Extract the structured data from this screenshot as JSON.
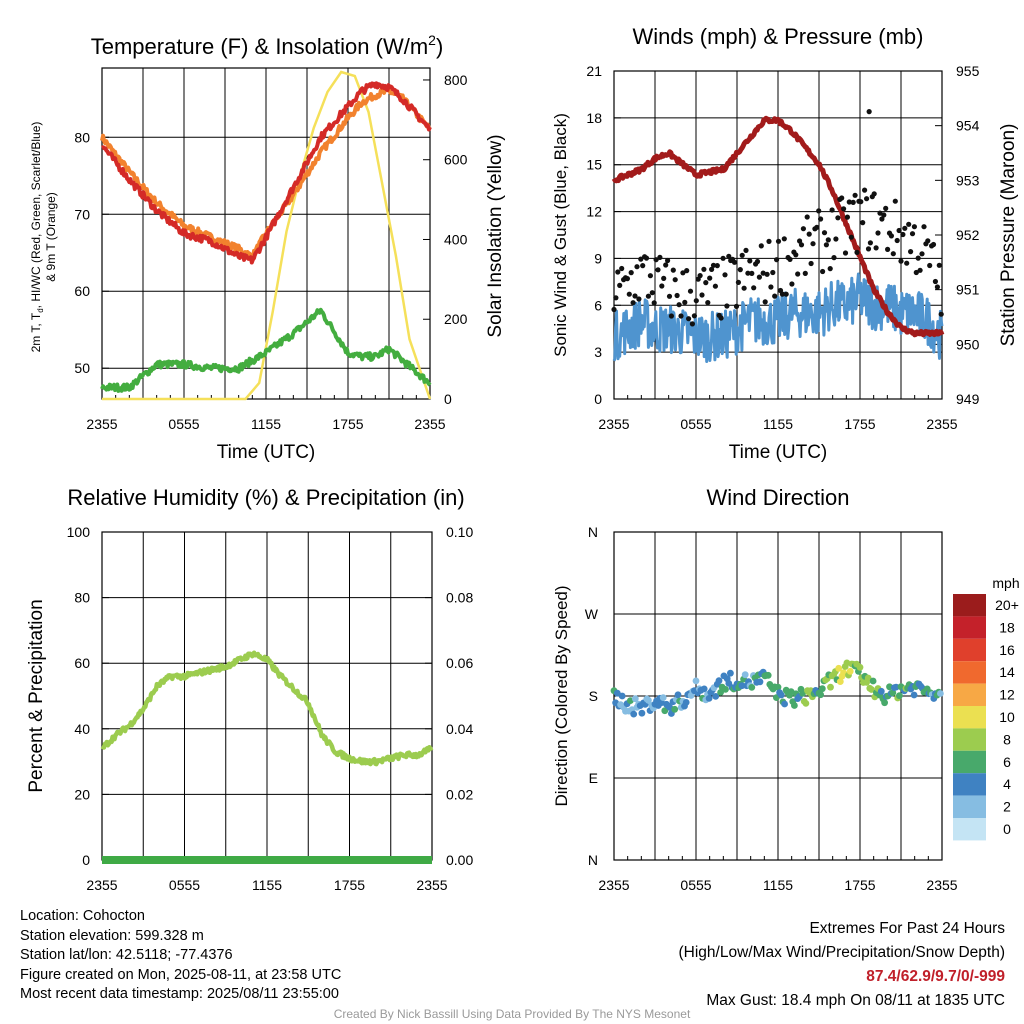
{
  "colors": {
    "temp": "#d42a27",
    "dewpoint": "#43ad3f",
    "temp9m": "#f2822e",
    "solar": "#f5e05a",
    "wind": "#4f94cf",
    "gust": "#111111",
    "pressure": "#a21b1b",
    "rh": "#9ccc4f",
    "precip": "#3faa45"
  },
  "panels": {
    "temp": {
      "title": "Temperature (F) & Insolation (W/m",
      "title_sup": "2",
      "title_end": ")",
      "ylabel_line1": "2m T, T",
      "ylabel_sub": "d",
      "ylabel_line1_end": ", HI/WC (Red, Green, Scarlet/Blue)",
      "ylabel_line2": "& 9m T (Orange)",
      "y2label": "Solar Insolation (Yellow)",
      "xlabel": "Time (UTC)"
    },
    "winds": {
      "title": "Winds (mph) & Pressure (mb)",
      "ylabel": "Sonic Wind & Gust (Blue, Black)",
      "y2label": "Station Pressure (Maroon)",
      "xlabel": "Time (UTC)"
    },
    "rh": {
      "title": "Relative Humidity (%) & Precipitation (in)",
      "ylabel": "Percent & Precipitation"
    },
    "dir": {
      "title": "Wind Direction",
      "ylabel": "Direction (Colored By Speed)"
    }
  },
  "chart_data": [
    {
      "type": "line",
      "title": "Temperature (F) & Insolation (W/m2)",
      "xlabel": "Time (UTC)",
      "ylabel": "2m T, Td, HI/WC (Red, Green, Scarlet/Blue) & 9m T (Orange)",
      "y2label": "Solar Insolation (Yellow)",
      "x_ticks": [
        "2355",
        "0555",
        "1155",
        "1755",
        "2355"
      ],
      "ylim": [
        46,
        89
      ],
      "y_ticks": [
        50,
        60,
        70,
        80
      ],
      "y2lim": [
        0,
        830
      ],
      "y2_ticks": [
        0,
        200,
        400,
        600,
        800
      ],
      "x_hours": [
        0,
        2,
        4,
        6,
        8,
        10,
        11,
        12,
        14,
        16,
        18,
        19,
        20,
        21,
        22,
        24
      ],
      "series": [
        {
          "name": "2m T",
          "values": [
            79,
            74.5,
            70.5,
            67.5,
            66.5,
            64.5,
            64,
            67,
            73.5,
            80,
            84,
            86,
            87,
            86.5,
            85,
            81
          ]
        },
        {
          "name": "Td",
          "values": [
            47.5,
            47.5,
            50.5,
            50.5,
            50,
            50,
            51,
            52,
            54.5,
            57.5,
            52,
            51.5,
            51.5,
            52.5,
            51,
            48
          ]
        },
        {
          "name": "9m T",
          "values": [
            80,
            75.5,
            71.5,
            68.5,
            67,
            65.5,
            64.5,
            67.5,
            72.5,
            78,
            82.5,
            84.5,
            85.5,
            86,
            85,
            81
          ]
        }
      ],
      "solar": {
        "name": "Solar Insolation",
        "x_hours": [
          0,
          10.5,
          11.5,
          12.5,
          13.5,
          14.5,
          15.5,
          16.5,
          17.5,
          18.5,
          19.5,
          20.5,
          21.5,
          22.5,
          24
        ],
        "values": [
          0,
          0,
          40,
          220,
          420,
          560,
          680,
          770,
          820,
          810,
          720,
          540,
          360,
          150,
          0
        ]
      }
    },
    {
      "type": "line",
      "title": "Winds (mph) & Pressure (mb)",
      "xlabel": "Time (UTC)",
      "ylabel": "Sonic Wind & Gust (Blue, Black)",
      "y2label": "Station Pressure (Maroon)",
      "x_ticks": [
        "2355",
        "0555",
        "1155",
        "1755",
        "2355"
      ],
      "ylim": [
        0,
        21
      ],
      "y_ticks": [
        0,
        3,
        6,
        9,
        12,
        15,
        18,
        21
      ],
      "y2lim": [
        949,
        955
      ],
      "y2_ticks": [
        949,
        950,
        951,
        952,
        953,
        954,
        955
      ],
      "x_hours": [
        0,
        2,
        3,
        4,
        6,
        8,
        10,
        11,
        12,
        13,
        14,
        15,
        16,
        17,
        18,
        19,
        20,
        21,
        22,
        23,
        24
      ],
      "series": [
        {
          "name": "Wind",
          "values": [
            4,
            5,
            4.5,
            4.5,
            4,
            4,
            5,
            5,
            5,
            5.5,
            5.5,
            5.5,
            6,
            6,
            6.5,
            6,
            6,
            5.5,
            5.5,
            5,
            4
          ]
        },
        {
          "name": "Gust",
          "values": [
            6.5,
            8,
            7.5,
            7,
            6.5,
            7,
            8,
            8,
            8.5,
            9,
            9.5,
            10,
            10.5,
            11,
            11.5,
            11.5,
            11,
            10.5,
            10,
            9,
            7
          ]
        },
        {
          "name": "Pressure",
          "values": [
            953.0,
            953.2,
            953.4,
            953.5,
            953.1,
            953.2,
            953.8,
            954.1,
            954.1,
            953.9,
            953.6,
            953.3,
            952.8,
            952.2,
            951.6,
            951.0,
            950.6,
            950.3,
            950.2,
            950.2,
            950.2
          ]
        }
      ],
      "max_gust": {
        "x_hour": 18.67,
        "value": 18.4
      }
    },
    {
      "type": "line",
      "title": "Relative Humidity (%) & Precipitation (in)",
      "ylabel": "Percent & Precipitation",
      "x_ticks": [
        "2355",
        "0555",
        "1155",
        "1755",
        "2355"
      ],
      "ylim": [
        0,
        100
      ],
      "y_ticks": [
        0,
        20,
        40,
        60,
        80,
        100
      ],
      "y2lim": [
        0,
        0.1
      ],
      "y2_ticks": [
        "0.00",
        "0.02",
        "0.04",
        "0.06",
        "0.08",
        "0.10"
      ],
      "x_hours": [
        0,
        1,
        2,
        3,
        4,
        5,
        6,
        7,
        8,
        9,
        10,
        11,
        12,
        13,
        14,
        15,
        16,
        17,
        18,
        19,
        20,
        21,
        22,
        23,
        24
      ],
      "series": [
        {
          "name": "RH",
          "values": [
            34,
            38,
            41,
            46,
            53,
            56,
            56,
            57,
            58,
            59,
            61,
            63,
            61,
            56,
            52,
            48,
            38,
            33,
            31,
            30,
            30,
            31,
            32,
            32,
            34
          ]
        },
        {
          "name": "Precipitation",
          "values": [
            0,
            0,
            0,
            0,
            0,
            0,
            0,
            0,
            0,
            0,
            0,
            0,
            0,
            0,
            0,
            0,
            0,
            0,
            0,
            0,
            0,
            0,
            0,
            0,
            0
          ]
        }
      ]
    },
    {
      "type": "scatter",
      "title": "Wind Direction",
      "ylabel": "Direction (Colored By Speed)",
      "x_ticks": [
        "2355",
        "0555",
        "1155",
        "1755",
        "2355"
      ],
      "y_ticks": [
        "N",
        "E",
        "S",
        "W",
        "N"
      ],
      "ylim_deg": [
        0,
        360
      ],
      "x_hours": [
        0,
        1,
        2,
        3,
        4,
        5,
        6,
        7,
        8,
        9,
        10,
        11,
        12,
        13,
        14,
        15,
        16,
        17,
        18,
        19,
        20,
        21,
        22,
        23,
        24
      ],
      "direction_deg": [
        180,
        170,
        167,
        175,
        168,
        175,
        188,
        182,
        195,
        197,
        195,
        200,
        182,
        177,
        180,
        185,
        198,
        210,
        205,
        188,
        180,
        188,
        190,
        185,
        185
      ],
      "speed_mph": [
        4,
        4,
        3,
        4,
        4,
        4,
        3,
        4,
        5,
        4,
        4,
        5,
        5,
        5,
        6,
        6,
        7,
        8,
        7,
        7,
        6,
        6,
        5,
        5,
        4
      ],
      "legend": {
        "title": "mph",
        "labels": [
          "20+",
          "18",
          "16",
          "14",
          "12",
          "10",
          "8",
          "6",
          "4",
          "2",
          "0"
        ],
        "colors": [
          "#9b1c1c",
          "#c4212a",
          "#e0402c",
          "#f0692e",
          "#f7a845",
          "#ebe051",
          "#9ccc4f",
          "#48a96b",
          "#3f82c2",
          "#86bde2",
          "#c4e4f4"
        ]
      }
    }
  ],
  "info": {
    "location": "Location: Cohocton",
    "elevation": "Station elevation: 599.328 m",
    "latlon": "Station lat/lon: 42.5118; -77.4376",
    "created": "Figure created on Mon, 2025-08-11, at 23:58 UTC",
    "recent": "Most recent data timestamp: 2025/08/11 23:55:00"
  },
  "extremes": {
    "title": "Extremes For Past 24 Hours",
    "subtitle": "(High/Low/Max Wind/Precipitation/Snow Depth)",
    "values": "87.4/62.9/9.7/0/-999",
    "max_gust": "Max Gust: 18.4 mph On 08/11 at 1835 UTC"
  },
  "credit": "Created By Nick Bassill Using Data Provided By The NYS Mesonet"
}
